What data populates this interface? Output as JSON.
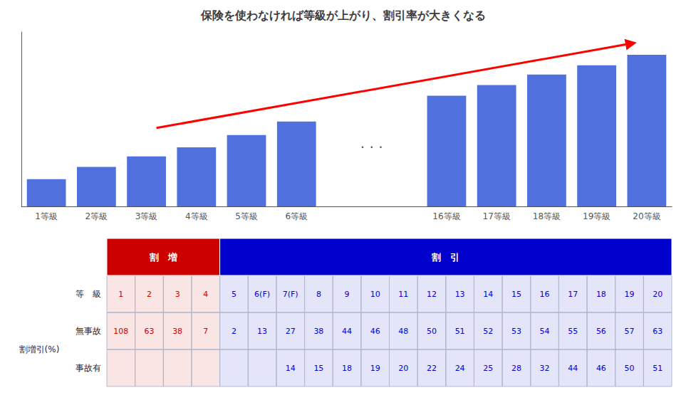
{
  "chart_data": [
    {
      "type": "bar",
      "title": "保険を使わなければ等級が上がり、割引率が大きくなる",
      "categories": [
        "1等級",
        "2等級",
        "3等級",
        "4等級",
        "5等級",
        "6等級",
        null,
        null,
        "16等級",
        "17等級",
        "18等級",
        "19等級",
        "20等級"
      ],
      "values": [
        18,
        26,
        33,
        39,
        47,
        56,
        null,
        null,
        73,
        80,
        87,
        93,
        100
      ],
      "ylim": [
        0,
        115
      ],
      "grid": false,
      "tick_labels": "x",
      "annotations": [
        {
          "text": ". . ."
        },
        {
          "type": "arrow",
          "color": "#ff0000"
        }
      ]
    },
    {
      "type": "table",
      "xlabel": "等　級",
      "ylabel": "割増引(%)",
      "annotations": [
        "割　増",
        "割　引"
      ],
      "categories": [
        "1",
        "2",
        "3",
        "4",
        "5",
        "6(F)",
        "7(F)",
        "8",
        "9",
        "10",
        "11",
        "12",
        "13",
        "14",
        "15",
        "16",
        "17",
        "18",
        "19",
        "20"
      ],
      "colors": [
        "#cc0000",
        "#cc0000",
        "#cc0000",
        "#cc0000",
        "#0000cc",
        "#0000cc",
        "#0000cc",
        "#0000cc",
        "#0000cc",
        "#0000cc",
        "#0000cc",
        "#0000cc",
        "#0000cc",
        "#0000cc",
        "#0000cc",
        "#0000cc",
        "#0000cc",
        "#0000cc",
        "#0000cc",
        "#0000cc"
      ],
      "series": [
        {
          "name": "無事故",
          "values": [
            108,
            63,
            38,
            7,
            2,
            13,
            27,
            38,
            44,
            46,
            48,
            50,
            51,
            52,
            53,
            54,
            55,
            56,
            57,
            63
          ]
        },
        {
          "name": "事故有",
          "values": [
            null,
            null,
            null,
            null,
            null,
            null,
            14,
            15,
            18,
            19,
            20,
            22,
            24,
            25,
            28,
            32,
            44,
            46,
            50,
            51
          ]
        }
      ]
    }
  ]
}
